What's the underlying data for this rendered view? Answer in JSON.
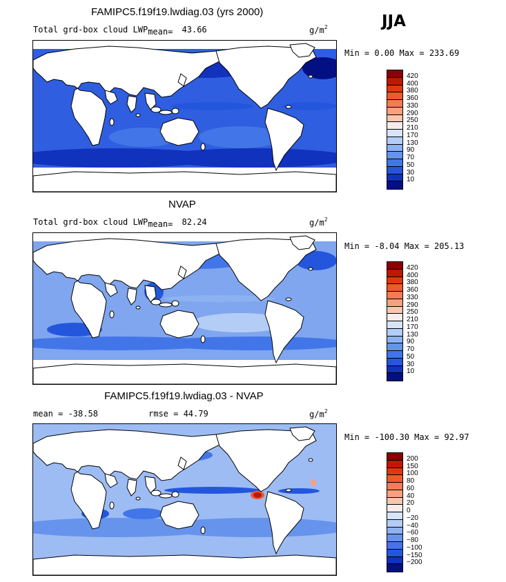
{
  "season": "JJA",
  "units_base": "g/m",
  "units_exp": "2",
  "chart_data": [
    {
      "type": "heatmap",
      "title": "FAMIPC5.f19f19.lwdiag.03 (yrs 2000)",
      "variable": "Total grd-box cloud LWP",
      "mean_label": "mean=",
      "mean": "43.66",
      "min_max": "Min =    0.00 Max = 233.69",
      "min": 0.0,
      "max": 233.69,
      "levels": [
        "420",
        "400",
        "380",
        "360",
        "330",
        "290",
        "250",
        "210",
        "170",
        "130",
        "90",
        "70",
        "50",
        "30",
        "10"
      ],
      "colors": [
        "#8b0000",
        "#c01800",
        "#e0380e",
        "#f0582e",
        "#f57a55",
        "#f9a07f",
        "#fcc6ae",
        "#f6ecec",
        "#d7e4f8",
        "#b3cdf6",
        "#8cb2f2",
        "#6694ec",
        "#4276e8",
        "#2456dd",
        "#1132bd",
        "#031083"
      ],
      "ocean_color": "#2f5fe0"
    },
    {
      "type": "heatmap",
      "title": "NVAP",
      "variable": "Total grd-box cloud LWP",
      "mean_label": "mean=",
      "mean": "82.24",
      "min_max": "Min =  -8.04 Max = 205.13",
      "min": -8.04,
      "max": 205.13,
      "levels": [
        "420",
        "400",
        "380",
        "360",
        "330",
        "290",
        "250",
        "210",
        "170",
        "130",
        "90",
        "70",
        "50",
        "30",
        "10"
      ],
      "colors": [
        "#8b0000",
        "#c01800",
        "#e0380e",
        "#f0582e",
        "#f57a55",
        "#f9a07f",
        "#fcc6ae",
        "#f6ecec",
        "#d7e4f8",
        "#b3cdf6",
        "#8cb2f2",
        "#6694ec",
        "#4276e8",
        "#2456dd",
        "#1132bd",
        "#031083"
      ],
      "ocean_color": "#7fa6ef"
    },
    {
      "type": "heatmap",
      "title": "FAMIPC5.f19f19.lwdiag.03 - NVAP",
      "mean_text": "mean = -38.58",
      "rmse_text": "rmse =  44.79",
      "mean": -38.58,
      "rmse": 44.79,
      "min_max": "Min = -100.30 Max =  92.97",
      "min": -100.3,
      "max": 92.97,
      "levels": [
        "200",
        "150",
        "100",
        "80",
        "60",
        "40",
        "20",
        "0",
        "−20",
        "−40",
        "−60",
        "−80",
        "−100",
        "−150",
        "−200"
      ],
      "colors": [
        "#8b0000",
        "#c01800",
        "#e0380e",
        "#f0582e",
        "#f57a55",
        "#f9a07f",
        "#fcc6ae",
        "#f6ecec",
        "#d7e4f8",
        "#b3cdf6",
        "#8cb2f2",
        "#6694ec",
        "#4276e8",
        "#2456dd",
        "#1132bd",
        "#031083"
      ],
      "ocean_color": "#9dbcf3"
    }
  ]
}
